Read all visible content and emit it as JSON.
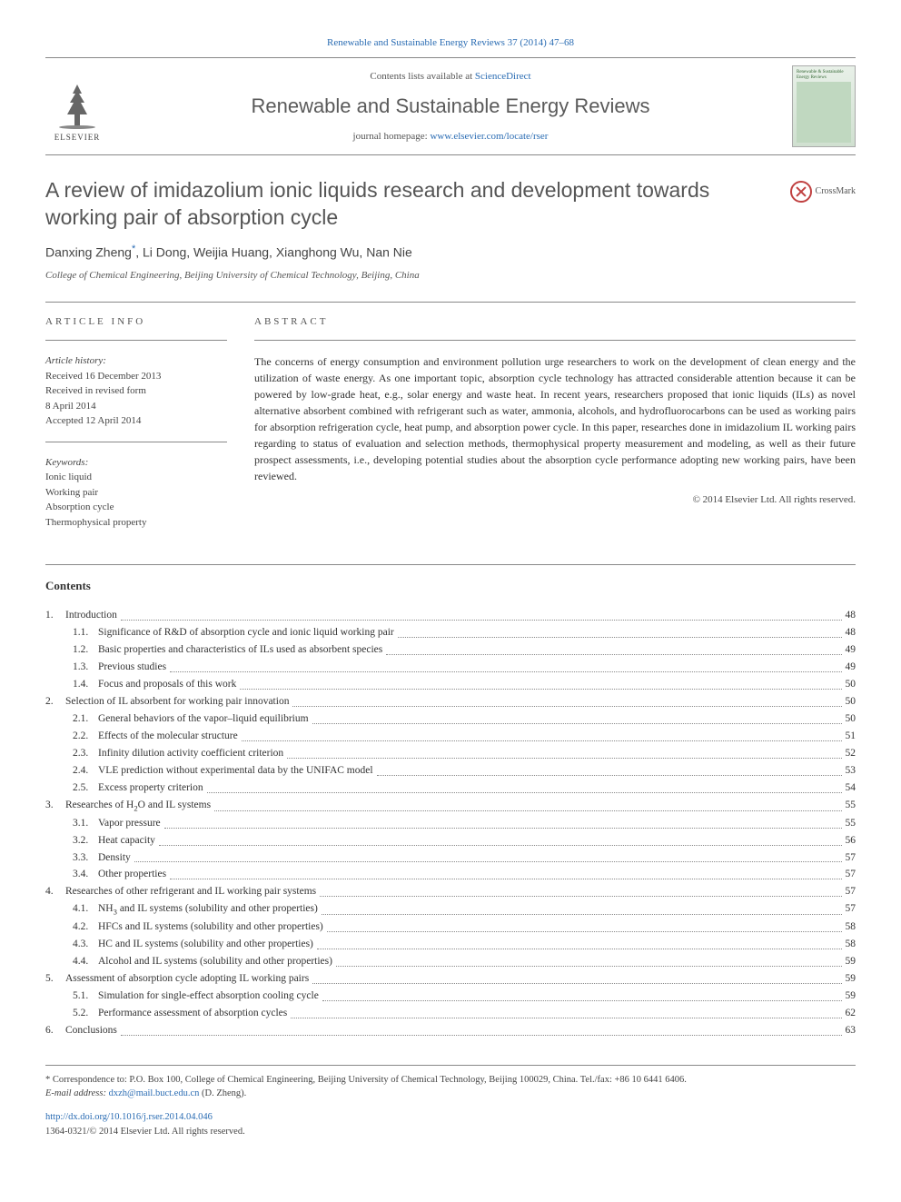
{
  "header": {
    "top_link_label": "Renewable and Sustainable Energy Reviews 37 (2014) 47–68",
    "contents_prefix": "Contents lists available at ",
    "contents_link": "ScienceDirect",
    "journal_name": "Renewable and Sustainable Energy Reviews",
    "homepage_prefix": "journal homepage: ",
    "homepage_link": "www.elsevier.com/locate/rser",
    "elsevier_label": "ELSEVIER",
    "cover_text": "Renewable & Sustainable Energy Reviews"
  },
  "article": {
    "title": "A review of imidazolium ionic liquids research and development towards working pair of absorption cycle",
    "crossmark_label": "CrossMark",
    "authors_html": "Danxing Zheng",
    "authors_rest": ", Li Dong, Weijia Huang, Xianghong Wu, Nan Nie",
    "corr_symbol": "*",
    "affiliation": "College of Chemical Engineering, Beijing University of Chemical Technology, Beijing, China"
  },
  "info": {
    "section_label": "ARTICLE INFO",
    "history_hdr": "Article history:",
    "received": "Received 16 December 2013",
    "revised1": "Received in revised form",
    "revised2": "8 April 2014",
    "accepted": "Accepted 12 April 2014",
    "keywords_hdr": "Keywords:",
    "keywords": [
      "Ionic liquid",
      "Working pair",
      "Absorption cycle",
      "Thermophysical property"
    ]
  },
  "abstract": {
    "section_label": "ABSTRACT",
    "text": "The concerns of energy consumption and environment pollution urge researchers to work on the development of clean energy and the utilization of waste energy. As one important topic, absorption cycle technology has attracted considerable attention because it can be powered by low-grade heat, e.g., solar energy and waste heat. In recent years, researchers proposed that ionic liquids (ILs) as novel alternative absorbent combined with refrigerant such as water, ammonia, alcohols, and hydrofluorocarbons can be used as working pairs for absorption refrigeration cycle, heat pump, and absorption power cycle. In this paper, researches done in imidazolium IL working pairs regarding to status of evaluation and selection methods, thermophysical property measurement and modeling, as well as their future prospect assessments, i.e., developing potential studies about the absorption cycle performance adopting new working pairs, have been reviewed.",
    "copyright": "© 2014 Elsevier Ltd. All rights reserved."
  },
  "contents": {
    "heading": "Contents",
    "items": [
      {
        "num": "1.",
        "label": "Introduction",
        "page": "48",
        "sub": [
          {
            "num": "1.1.",
            "label": "Significance of R&D of absorption cycle and ionic liquid working pair",
            "page": "48"
          },
          {
            "num": "1.2.",
            "label": "Basic properties and characteristics of ILs used as absorbent species",
            "page": "49"
          },
          {
            "num": "1.3.",
            "label": "Previous studies",
            "page": "49"
          },
          {
            "num": "1.4.",
            "label": "Focus and proposals of this work",
            "page": "50"
          }
        ]
      },
      {
        "num": "2.",
        "label": "Selection of IL absorbent for working pair innovation",
        "page": "50",
        "sub": [
          {
            "num": "2.1.",
            "label": "General behaviors of the vapor–liquid equilibrium",
            "page": "50"
          },
          {
            "num": "2.2.",
            "label": "Effects of the molecular structure",
            "page": "51"
          },
          {
            "num": "2.3.",
            "label": "Infinity dilution activity coefficient criterion",
            "page": "52"
          },
          {
            "num": "2.4.",
            "label": "VLE prediction without experimental data by the UNIFAC model",
            "page": "53"
          },
          {
            "num": "2.5.",
            "label": "Excess property criterion",
            "page": "54"
          }
        ]
      },
      {
        "num": "3.",
        "label": "Researches of H₂O and IL systems",
        "page": "55",
        "sub": [
          {
            "num": "3.1.",
            "label": "Vapor pressure",
            "page": "55"
          },
          {
            "num": "3.2.",
            "label": "Heat capacity",
            "page": "56"
          },
          {
            "num": "3.3.",
            "label": "Density",
            "page": "57"
          },
          {
            "num": "3.4.",
            "label": "Other properties",
            "page": "57"
          }
        ]
      },
      {
        "num": "4.",
        "label": "Researches of other refrigerant and IL working pair systems",
        "page": "57",
        "sub": [
          {
            "num": "4.1.",
            "label": "NH₃ and IL systems (solubility and other properties)",
            "page": "57"
          },
          {
            "num": "4.2.",
            "label": "HFCs and IL systems (solubility and other properties)",
            "page": "58"
          },
          {
            "num": "4.3.",
            "label": "HC and IL systems (solubility and other properties)",
            "page": "58"
          },
          {
            "num": "4.4.",
            "label": "Alcohol and IL systems (solubility and other properties)",
            "page": "59"
          }
        ]
      },
      {
        "num": "5.",
        "label": "Assessment of absorption cycle adopting IL working pairs",
        "page": "59",
        "sub": [
          {
            "num": "5.1.",
            "label": "Simulation for single-effect absorption cooling cycle",
            "page": "59"
          },
          {
            "num": "5.2.",
            "label": "Performance assessment of absorption cycles",
            "page": "62"
          }
        ]
      },
      {
        "num": "6.",
        "label": "Conclusions",
        "page": "63",
        "sub": []
      }
    ]
  },
  "footnotes": {
    "corr_prefix": "* Correspondence to: P.O. Box 100, College of Chemical Engineering, Beijing University of Chemical Technology, Beijing 100029, China. Tel./fax: +86 10 6441 6406.",
    "email_label": "E-mail address: ",
    "email": "dxzh@mail.buct.edu.cn",
    "email_suffix": " (D. Zheng).",
    "doi": "http://dx.doi.org/10.1016/j.rser.2014.04.046",
    "issn": "1364-0321/© 2014 Elsevier Ltd. All rights reserved."
  },
  "colors": {
    "link": "#2a6cb3",
    "text": "#2a2a2a",
    "muted": "#555555",
    "rule": "#888888"
  },
  "typography": {
    "body_pt": 13,
    "title_pt": 23,
    "journal_name_pt": 22,
    "small_pt": 11,
    "toc_pt": 11.5,
    "footnote_pt": 10.5
  }
}
